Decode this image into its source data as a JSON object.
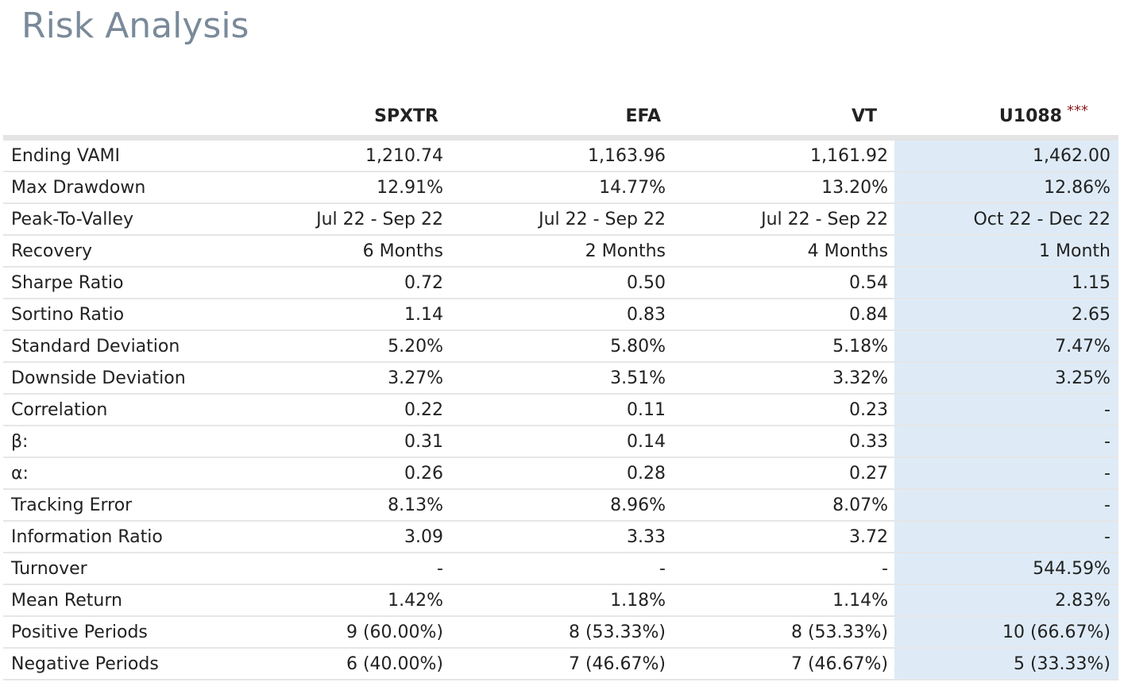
{
  "page": {
    "title": "Risk Analysis"
  },
  "table": {
    "columns": [
      {
        "label": "SPXTR",
        "marker": ""
      },
      {
        "label": "EFA",
        "marker": ""
      },
      {
        "label": "VT",
        "marker": ""
      },
      {
        "label": "U1088",
        "marker": "***"
      }
    ],
    "rows": [
      {
        "label": "Ending VAMI",
        "values": [
          "1,210.74",
          "1,163.96",
          "1,161.92",
          "1,462.00"
        ]
      },
      {
        "label": "Max Drawdown",
        "values": [
          "12.91%",
          "14.77%",
          "13.20%",
          "12.86%"
        ]
      },
      {
        "label": "Peak-To-Valley",
        "values": [
          "Jul 22 - Sep 22",
          "Jul 22 - Sep 22",
          "Jul 22 - Sep 22",
          "Oct 22 - Dec 22"
        ]
      },
      {
        "label": "Recovery",
        "values": [
          "6 Months",
          "2 Months",
          "4 Months",
          "1 Month"
        ]
      },
      {
        "label": "Sharpe Ratio",
        "values": [
          "0.72",
          "0.50",
          "0.54",
          "1.15"
        ]
      },
      {
        "label": "Sortino Ratio",
        "values": [
          "1.14",
          "0.83",
          "0.84",
          "2.65"
        ]
      },
      {
        "label": "Standard Deviation",
        "values": [
          "5.20%",
          "5.80%",
          "5.18%",
          "7.47%"
        ]
      },
      {
        "label": "Downside Deviation",
        "values": [
          "3.27%",
          "3.51%",
          "3.32%",
          "3.25%"
        ]
      },
      {
        "label": "Correlation",
        "values": [
          "0.22",
          "0.11",
          "0.23",
          "-"
        ]
      },
      {
        "label": "β:",
        "values": [
          "0.31",
          "0.14",
          "0.33",
          "-"
        ]
      },
      {
        "label": "α:",
        "values": [
          "0.26",
          "0.28",
          "0.27",
          "-"
        ]
      },
      {
        "label": "Tracking Error",
        "values": [
          "8.13%",
          "8.96%",
          "8.07%",
          "-"
        ]
      },
      {
        "label": "Information Ratio",
        "values": [
          "3.09",
          "3.33",
          "3.72",
          "-"
        ]
      },
      {
        "label": "Turnover",
        "values": [
          "-",
          "-",
          "-",
          "544.59%"
        ]
      },
      {
        "label": "Mean Return",
        "values": [
          "1.42%",
          "1.18%",
          "1.14%",
          "2.83%"
        ]
      },
      {
        "label": "Positive Periods",
        "values": [
          "9 (60.00%)",
          "8 (53.33%)",
          "8 (53.33%)",
          "10 (66.67%)"
        ]
      },
      {
        "label": "Negative Periods",
        "values": [
          "6 (40.00%)",
          "7 (46.67%)",
          "7 (46.67%)",
          "5 (33.33%)"
        ]
      }
    ]
  },
  "colors": {
    "title": "#7a8a9a",
    "highlight_column": "#deebf7",
    "marker": "#8b1c1c",
    "header_rule": "#e4e4e4",
    "row_rule": "#e6e6e6"
  }
}
